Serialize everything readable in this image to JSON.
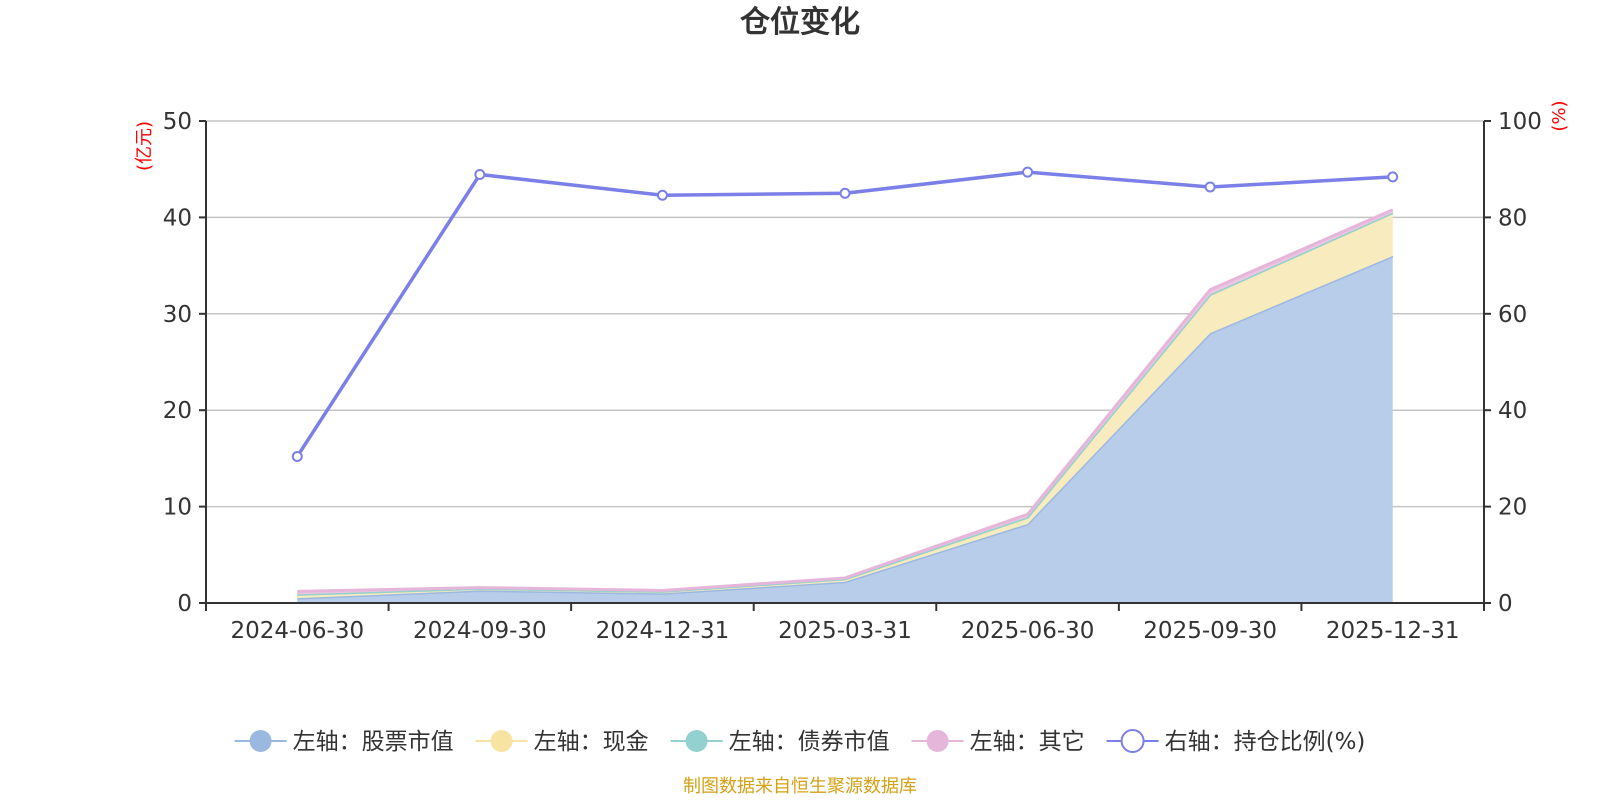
{
  "chart_data": {
    "type": "area",
    "title": "仓位变化",
    "categories": [
      "2024-06-30",
      "2024-09-30",
      "2024-12-31",
      "2025-03-31",
      "2025-06-30",
      "2025-09-30",
      "2025-12-31"
    ],
    "left_axis": {
      "unit": "(亿元)",
      "min": 0,
      "max": 50,
      "ticks": [
        0,
        10,
        20,
        30,
        40,
        50
      ]
    },
    "right_axis": {
      "unit": "(%)",
      "min": 0,
      "max": 100,
      "ticks": [
        0,
        20,
        40,
        60,
        80,
        100
      ]
    },
    "stacked_series": [
      {
        "name": "左轴：股票市值",
        "color": "#9bb8e1",
        "fill": "#b8cdea",
        "values": [
          0.5,
          1.3,
          1.0,
          2.2,
          8.2,
          28.0,
          36.0
        ]
      },
      {
        "name": "左轴：现金",
        "color": "#f7e3a2",
        "fill": "#f8ebbd",
        "values": [
          0.4,
          0.2,
          0.2,
          0.3,
          0.7,
          4.0,
          4.5
        ]
      },
      {
        "name": "左轴：债券市值",
        "color": "#92d1d0",
        "fill": "#b3dfde",
        "values": [
          0,
          0,
          0,
          0,
          0,
          0,
          0
        ]
      },
      {
        "name": "左轴：其它",
        "color": "#e5b6d9",
        "fill": "#ebc6e1",
        "values": [
          0.3,
          0.1,
          0.1,
          0.1,
          0.3,
          0.5,
          0.3
        ]
      }
    ],
    "line_series": {
      "name": "右轴：持仓比例(%)",
      "color": "#7b7fe8",
      "values": [
        30.4,
        88.9,
        84.6,
        85.0,
        89.4,
        86.3,
        88.4
      ]
    },
    "grid": true,
    "legend_position": "bottom-center"
  },
  "colors": {
    "unit_label": "#ff0000",
    "source": "#d4a017"
  },
  "footer": {
    "source": "制图数据来自恒生聚源数据库"
  }
}
